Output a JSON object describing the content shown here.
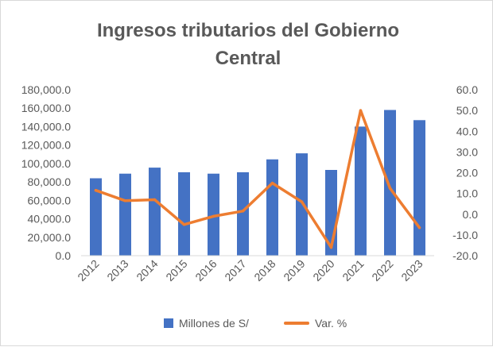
{
  "chart_data": {
    "type": "bar+line",
    "title_lines": [
      "Ingresos tributarios del Gobierno",
      "Central"
    ],
    "categories": [
      "2012",
      "2013",
      "2014",
      "2015",
      "2016",
      "2017",
      "2018",
      "2019",
      "2020",
      "2021",
      "2022",
      "2023"
    ],
    "series": [
      {
        "name": "Millones de S/",
        "type": "bar",
        "axis": "left",
        "color": "#4472C4",
        "values": [
          84000,
          89000,
          95500,
          90500,
          89000,
          90500,
          104500,
          111000,
          93000,
          140000,
          158000,
          147000
        ]
      },
      {
        "name": "Var. %",
        "type": "line",
        "axis": "right",
        "color": "#ED7D31",
        "values": [
          11.5,
          6.5,
          7.0,
          -5.0,
          -1.0,
          1.5,
          15.0,
          6.0,
          -16.0,
          50.0,
          12.5,
          -6.5
        ]
      }
    ],
    "left_axis": {
      "min": 0,
      "max": 180000,
      "step": 20000,
      "tick_labels": [
        "0.0",
        "20,000.0",
        "40,000.0",
        "60,000.0",
        "80,000.0",
        "100,000.0",
        "120,000.0",
        "140,000.0",
        "160,000.0",
        "180,000.0"
      ]
    },
    "right_axis": {
      "min": -20,
      "max": 60,
      "step": 10,
      "tick_labels": [
        "-20.0",
        "-10.0",
        "0.0",
        "10.0",
        "20.0",
        "30.0",
        "40.0",
        "50.0",
        "60.0"
      ]
    },
    "grid": false,
    "legend_position": "bottom"
  }
}
